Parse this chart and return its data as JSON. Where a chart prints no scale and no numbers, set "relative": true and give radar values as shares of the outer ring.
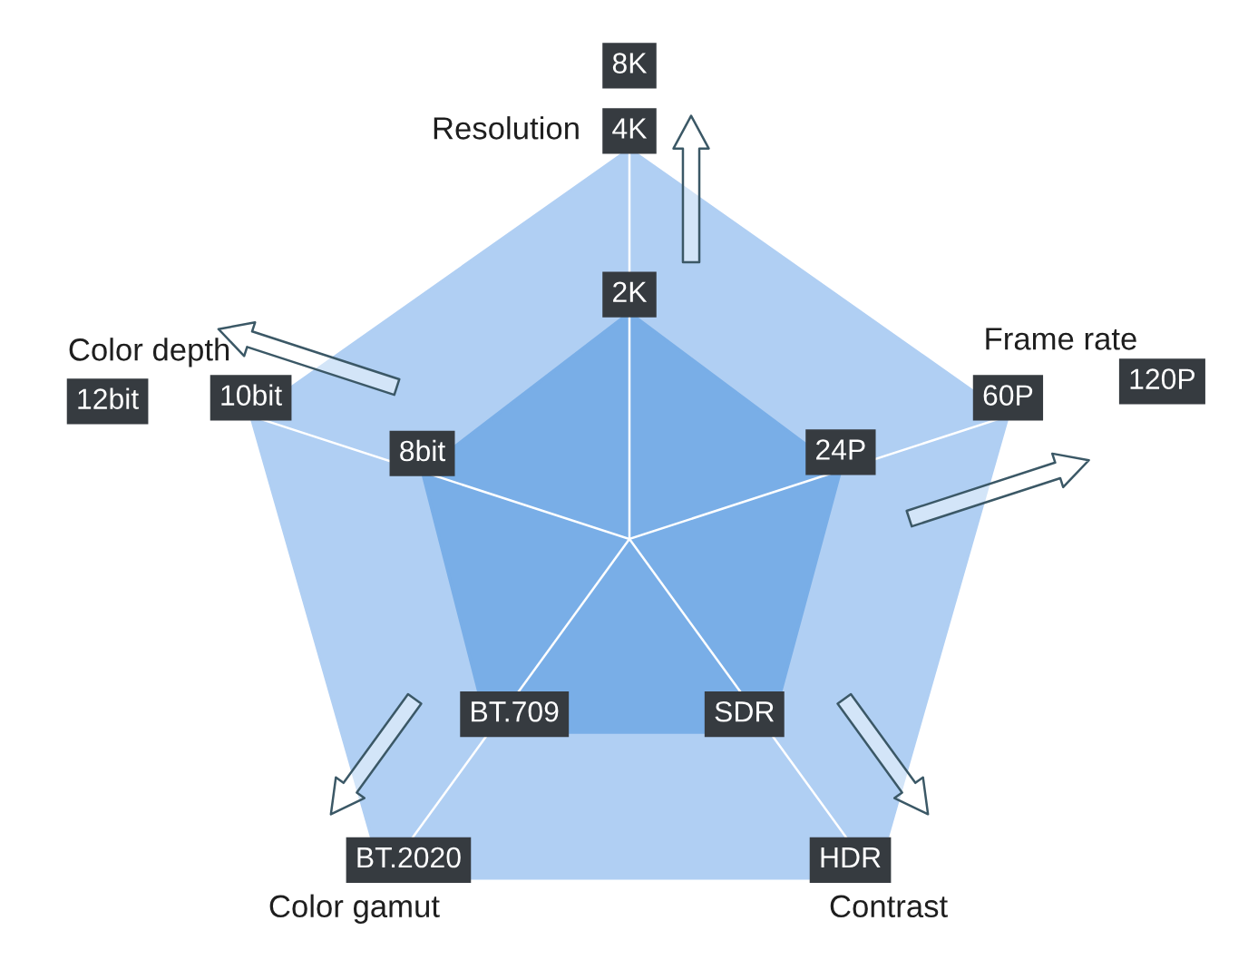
{
  "chart_data": {
    "type": "radar",
    "relative": true,
    "grid": true,
    "categories": [
      "Resolution",
      "Frame rate",
      "Contrast",
      "Color gamut",
      "Color depth"
    ],
    "series": [
      {
        "color": "#b0cff3",
        "values": [
          0.93,
          0.95,
          1,
          1,
          0.95
        ]
      },
      {
        "color": "#79aee7",
        "values": [
          0.54,
          0.53,
          0.57,
          0.57,
          0.52
        ]
      }
    ],
    "annotations": [
      {
        "text": "8K",
        "x": "Resolution"
      },
      {
        "text": "4K",
        "x": "Resolution"
      },
      {
        "text": "2K",
        "x": "Resolution"
      },
      {
        "text": "120P",
        "x": "Frame rate"
      },
      {
        "text": "60P",
        "x": "Frame rate"
      },
      {
        "text": "24P",
        "x": "Frame rate"
      },
      {
        "text": "HDR",
        "x": "Contrast"
      },
      {
        "text": "SDR",
        "x": "Contrast"
      },
      {
        "text": "BT.2020",
        "x": "Color gamut"
      },
      {
        "text": "BT.709",
        "x": "Color gamut"
      },
      {
        "text": "12bit",
        "x": "Color depth"
      },
      {
        "text": "10bit",
        "x": "Color depth"
      },
      {
        "text": "8bit",
        "x": "Color depth"
      }
    ]
  }
}
